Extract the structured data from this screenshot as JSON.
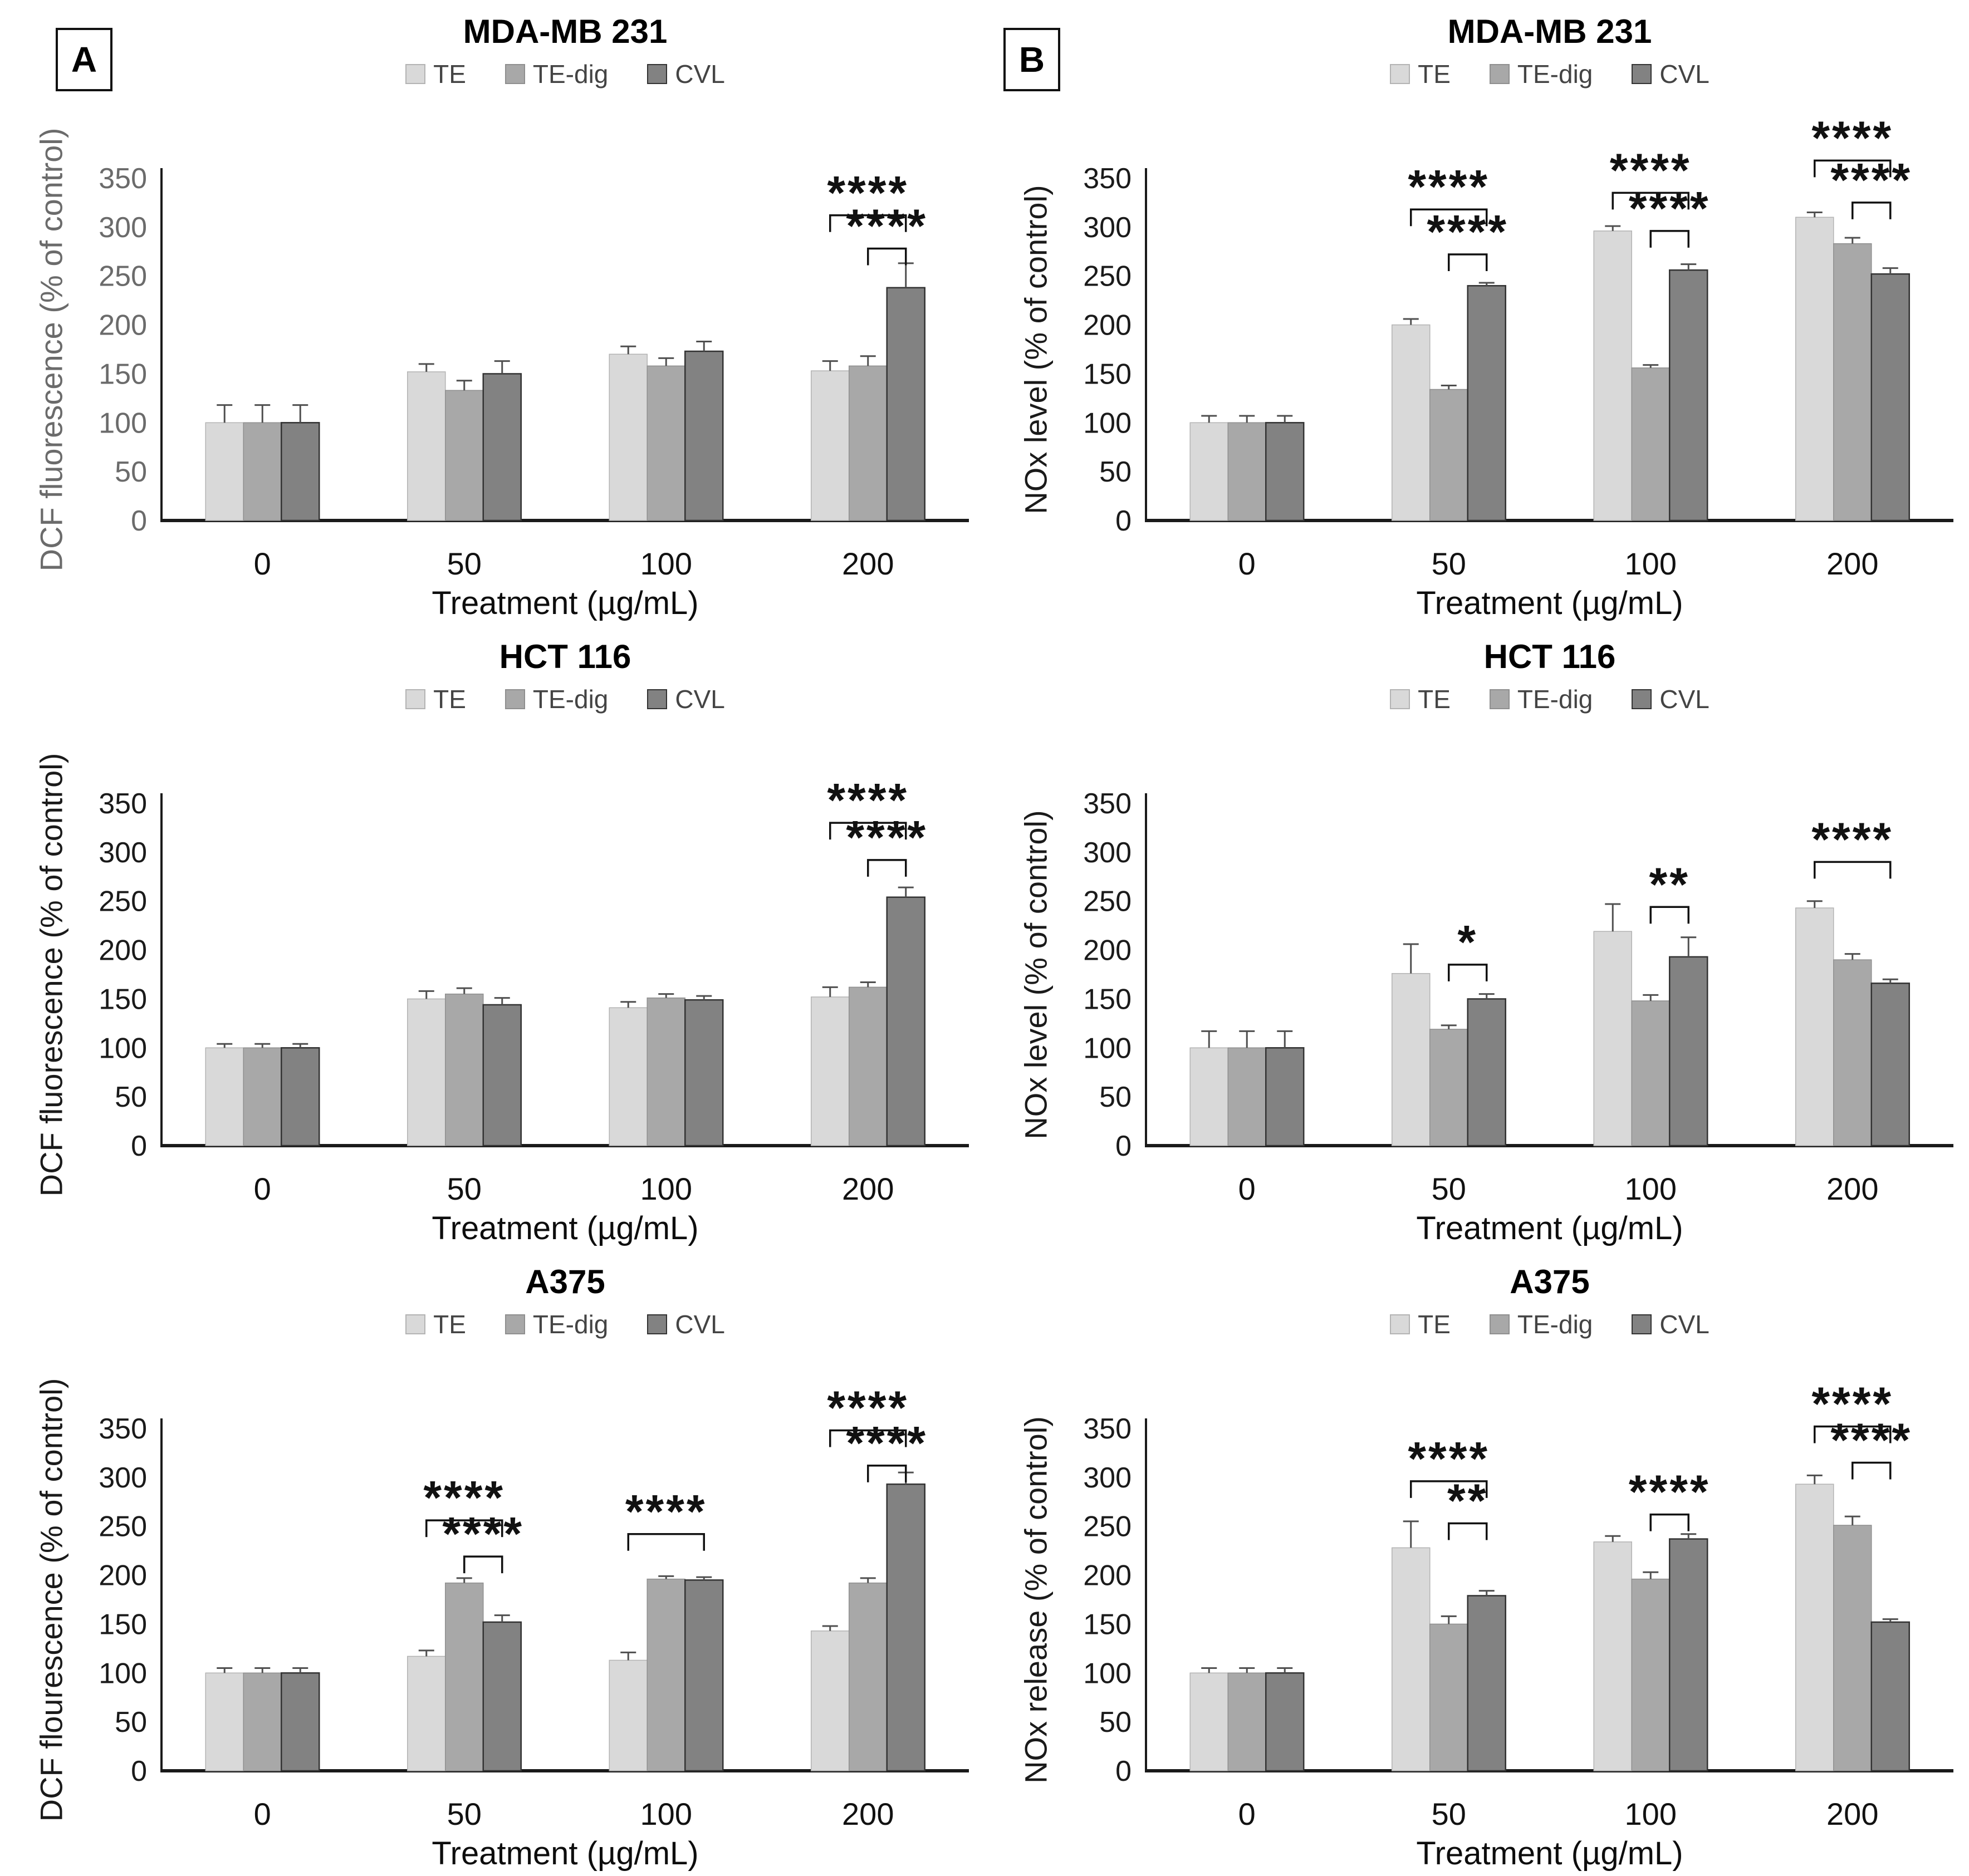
{
  "panels": [
    {
      "label": "A"
    },
    {
      "label": "B"
    }
  ],
  "legend": {
    "items": [
      {
        "label": "TE",
        "color": "#d9d9d9",
        "border": "#b3b3b3"
      },
      {
        "label": "TE-dig",
        "color": "#a8a8a8",
        "border": "#8f8f8f"
      },
      {
        "label": "CVL",
        "color": "#828282",
        "border": "#333333"
      }
    ]
  },
  "colors": {
    "axis_line": "#1a1a1a",
    "axis_text": "#1a1a1a",
    "error_bar": "#4f4f4f",
    "significance": "#111111",
    "gray_axis_text": "#6b6b6b"
  },
  "chart_data": [
    {
      "type": "bar",
      "panel": "A",
      "title": "MDA-MB 231",
      "ylabel": "DCF fluorescence (% of control)",
      "xlabel": "Treatment (µg/mL)",
      "ylim": [
        0,
        350
      ],
      "ytick_step": 50,
      "grid": false,
      "legend_position": "top",
      "y_text_color": "#6b6b6b",
      "categories": [
        "0",
        "50",
        "100",
        "200"
      ],
      "series": [
        {
          "name": "TE",
          "values": [
            100,
            152,
            170,
            153
          ],
          "errors": [
            18,
            8,
            8,
            10
          ]
        },
        {
          "name": "TE-dig",
          "values": [
            100,
            133,
            158,
            158
          ],
          "errors": [
            18,
            10,
            8,
            10
          ]
        },
        {
          "name": "CVL",
          "values": [
            100,
            150,
            173,
            238
          ],
          "errors": [
            18,
            13,
            10,
            25
          ]
        }
      ],
      "significance": [
        {
          "group": 3,
          "from": 0,
          "to": 2,
          "y": 312,
          "label": "****"
        },
        {
          "group": 3,
          "from": 1,
          "to": 2,
          "y": 278,
          "label": "****"
        }
      ]
    },
    {
      "type": "bar",
      "panel": "B",
      "title": "MDA-MB 231",
      "ylabel": "NOx level (% of control)",
      "xlabel": "Treatment (µg/mL)",
      "ylim": [
        0,
        350
      ],
      "ytick_step": 50,
      "grid": false,
      "legend_position": "top",
      "categories": [
        "0",
        "50",
        "100",
        "200"
      ],
      "series": [
        {
          "name": "TE",
          "values": [
            100,
            200,
            296,
            310
          ],
          "errors": [
            7,
            6,
            5,
            5
          ]
        },
        {
          "name": "TE-dig",
          "values": [
            100,
            134,
            156,
            283
          ],
          "errors": [
            7,
            4,
            3,
            6
          ]
        },
        {
          "name": "CVL",
          "values": [
            100,
            240,
            256,
            252
          ],
          "errors": [
            7,
            3,
            6,
            6
          ]
        }
      ],
      "significance": [
        {
          "group": 1,
          "from": 0,
          "to": 2,
          "y": 318,
          "label": "****"
        },
        {
          "group": 1,
          "from": 1,
          "to": 2,
          "y": 272,
          "label": "****"
        },
        {
          "group": 2,
          "from": 0,
          "to": 2,
          "y": 335,
          "label": "****"
        },
        {
          "group": 2,
          "from": 1,
          "to": 2,
          "y": 296,
          "label": "****"
        },
        {
          "group": 3,
          "from": 0,
          "to": 2,
          "y": 368,
          "label": "****"
        },
        {
          "group": 3,
          "from": 1,
          "to": 2,
          "y": 325,
          "label": "****"
        }
      ]
    },
    {
      "type": "bar",
      "panel": "A",
      "title": "HCT 116",
      "ylabel": "DCF fluorescence (% of control)",
      "xlabel": "Treatment (µg/mL)",
      "ylim": [
        0,
        350
      ],
      "ytick_step": 50,
      "grid": false,
      "legend_position": "top",
      "categories": [
        "0",
        "50",
        "100",
        "200"
      ],
      "series": [
        {
          "name": "TE",
          "values": [
            100,
            150,
            141,
            152
          ],
          "errors": [
            4,
            8,
            6,
            10
          ]
        },
        {
          "name": "TE-dig",
          "values": [
            100,
            155,
            151,
            162
          ],
          "errors": [
            4,
            6,
            4,
            5
          ]
        },
        {
          "name": "CVL",
          "values": [
            100,
            144,
            149,
            254
          ],
          "errors": [
            4,
            7,
            4,
            10
          ]
        }
      ],
      "significance": [
        {
          "group": 3,
          "from": 0,
          "to": 2,
          "y": 330,
          "label": "****"
        },
        {
          "group": 3,
          "from": 1,
          "to": 2,
          "y": 292,
          "label": "****"
        }
      ]
    },
    {
      "type": "bar",
      "panel": "B",
      "title": "HCT 116",
      "ylabel": "NOx level (% of control)",
      "xlabel": "Treatment (µg/mL)",
      "ylim": [
        0,
        350
      ],
      "ytick_step": 50,
      "grid": false,
      "legend_position": "top",
      "categories": [
        "0",
        "50",
        "100",
        "200"
      ],
      "series": [
        {
          "name": "TE",
          "values": [
            100,
            176,
            219,
            243
          ],
          "errors": [
            17,
            30,
            28,
            7
          ]
        },
        {
          "name": "TE-dig",
          "values": [
            100,
            119,
            148,
            190
          ],
          "errors": [
            17,
            4,
            6,
            6
          ]
        },
        {
          "name": "CVL",
          "values": [
            100,
            150,
            193,
            166
          ],
          "errors": [
            17,
            5,
            20,
            4
          ]
        }
      ],
      "significance": [
        {
          "group": 1,
          "from": 1,
          "to": 2,
          "y": 185,
          "label": "*"
        },
        {
          "group": 2,
          "from": 1,
          "to": 2,
          "y": 244,
          "label": "**"
        },
        {
          "group": 3,
          "from": 0,
          "to": 2,
          "y": 290,
          "label": "****"
        }
      ]
    },
    {
      "type": "bar",
      "panel": "A",
      "title": "A375",
      "ylabel": "DCF flourescence (% of control)",
      "xlabel": "Treatment (µg/mL)",
      "ylim": [
        0,
        350
      ],
      "ytick_step": 50,
      "grid": false,
      "legend_position": "top",
      "categories": [
        "0",
        "50",
        "100",
        "200"
      ],
      "series": [
        {
          "name": "TE",
          "values": [
            100,
            117,
            113,
            143
          ],
          "errors": [
            5,
            6,
            8,
            5
          ]
        },
        {
          "name": "TE-dig",
          "values": [
            100,
            192,
            196,
            192
          ],
          "errors": [
            5,
            5,
            3,
            5
          ]
        },
        {
          "name": "CVL",
          "values": [
            100,
            152,
            195,
            293
          ],
          "errors": [
            5,
            7,
            3,
            12
          ]
        }
      ],
      "significance": [
        {
          "group": 1,
          "from": 0,
          "to": 2,
          "y": 256,
          "label": "****"
        },
        {
          "group": 1,
          "from": 1,
          "to": 2,
          "y": 219,
          "label": "****"
        },
        {
          "group": 2,
          "from": 0,
          "to": 2,
          "y": 242,
          "label": "****"
        },
        {
          "group": 3,
          "from": 0,
          "to": 2,
          "y": 348,
          "label": "****"
        },
        {
          "group": 3,
          "from": 1,
          "to": 2,
          "y": 312,
          "label": "****"
        }
      ]
    },
    {
      "type": "bar",
      "panel": "B",
      "title": "A375",
      "ylabel": "NOx release (% of control)",
      "xlabel": "Treatment (µg/mL)",
      "ylim": [
        0,
        350
      ],
      "ytick_step": 50,
      "grid": false,
      "legend_position": "top",
      "categories": [
        "0",
        "50",
        "100",
        "200"
      ],
      "series": [
        {
          "name": "TE",
          "values": [
            100,
            228,
            234,
            293
          ],
          "errors": [
            5,
            27,
            6,
            9
          ]
        },
        {
          "name": "TE-dig",
          "values": [
            100,
            150,
            196,
            251
          ],
          "errors": [
            5,
            8,
            7,
            9
          ]
        },
        {
          "name": "CVL",
          "values": [
            100,
            179,
            237,
            152
          ],
          "errors": [
            5,
            5,
            5,
            3
          ]
        }
      ],
      "significance": [
        {
          "group": 1,
          "from": 0,
          "to": 2,
          "y": 296,
          "label": "****"
        },
        {
          "group": 1,
          "from": 1,
          "to": 2,
          "y": 253,
          "label": "**"
        },
        {
          "group": 2,
          "from": 1,
          "to": 2,
          "y": 262,
          "label": "****"
        },
        {
          "group": 3,
          "from": 0,
          "to": 2,
          "y": 352,
          "label": "****"
        },
        {
          "group": 3,
          "from": 1,
          "to": 2,
          "y": 315,
          "label": "****"
        }
      ]
    }
  ]
}
